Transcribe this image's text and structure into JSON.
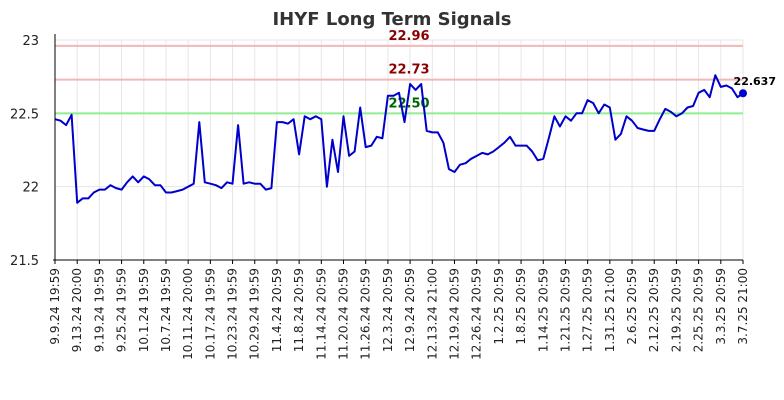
{
  "chart_data": {
    "type": "line",
    "title": "IHYF Long Term Signals",
    "xlabel": "",
    "ylabel": "",
    "ylim": [
      21.5,
      23.0
    ],
    "yticks": [
      "21.5",
      "22",
      "22.5",
      "23"
    ],
    "grid": true,
    "colors": {
      "line": "#0000cc",
      "resistance": "#f4b6b6",
      "resistance_label": "#8b0000",
      "support": "#90ee90",
      "support_label": "#006400",
      "grid": "#e6e6e6",
      "axis": "#000000"
    },
    "x_tick_labels": [
      "9.9.24 19:59",
      "9.13.24 20:00",
      "9.19.24 19:59",
      "9.25.24 19:59",
      "10.1.24 19:59",
      "10.7.24 19:59",
      "10.11.24 20:00",
      "10.17.24 19:59",
      "10.23.24 19:59",
      "10.29.24 19:59",
      "11.4.24 20:59",
      "11.8.24 20:59",
      "11.14.24 20:59",
      "11.20.24 20:59",
      "11.26.24 20:59",
      "12.3.24 20:59",
      "12.9.24 20:59",
      "12.13.24 21:00",
      "12.19.24 20:59",
      "12.26.24 20:59",
      "1.2.25 20:59",
      "1.8.25 20:59",
      "1.14.25 20:59",
      "1.21.25 20:59",
      "1.27.25 20:59",
      "1.31.25 21:00",
      "2.6.25 20:59",
      "2.12.25 20:59",
      "2.19.25 20:59",
      "2.25.25 20:59",
      "3.3.25 20:59",
      "3.7.25 21:00"
    ],
    "horizontal_levels": [
      {
        "value": 22.96,
        "label": "22.96",
        "kind": "resistance"
      },
      {
        "value": 22.73,
        "label": "22.73",
        "kind": "resistance"
      },
      {
        "value": 22.5,
        "label": "22.50",
        "kind": "support"
      }
    ],
    "last_point_label": "22.637",
    "series": [
      {
        "values": [
          22.46,
          22.45,
          22.42,
          22.49,
          21.89,
          21.92,
          21.92,
          21.96,
          21.98,
          21.98,
          22.01,
          21.99,
          21.98,
          22.03,
          22.07,
          22.03,
          22.07,
          22.05,
          22.01,
          22.01,
          21.96,
          21.96,
          21.97,
          21.98,
          22.0,
          22.02,
          22.44,
          22.03,
          22.02,
          22.01,
          21.99,
          22.03,
          22.02,
          22.42,
          22.02,
          22.03,
          22.02,
          22.02,
          21.98,
          21.99,
          22.44,
          22.44,
          22.43,
          22.46,
          22.22,
          22.48,
          22.46,
          22.48,
          22.46,
          22.0,
          22.32,
          22.1,
          22.48,
          22.21,
          22.24,
          22.54,
          22.27,
          22.28,
          22.34,
          22.33,
          22.62,
          22.62,
          22.64,
          22.44,
          22.7,
          22.66,
          22.7,
          22.38,
          22.37,
          22.37,
          22.3,
          22.12,
          22.1,
          22.15,
          22.16,
          22.19,
          22.21,
          22.23,
          22.22,
          22.24,
          22.27,
          22.3,
          22.34,
          22.28,
          22.28,
          22.28,
          22.24,
          22.18,
          22.19,
          22.33,
          22.48,
          22.41,
          22.48,
          22.45,
          22.5,
          22.5,
          22.59,
          22.57,
          22.5,
          22.56,
          22.54,
          22.32,
          22.36,
          22.48,
          22.45,
          22.4,
          22.39,
          22.38,
          22.38,
          22.46,
          22.53,
          22.51,
          22.48,
          22.5,
          22.54,
          22.55,
          22.64,
          22.66,
          22.61,
          22.76,
          22.68,
          22.69,
          22.67,
          22.61,
          22.637
        ]
      }
    ]
  }
}
